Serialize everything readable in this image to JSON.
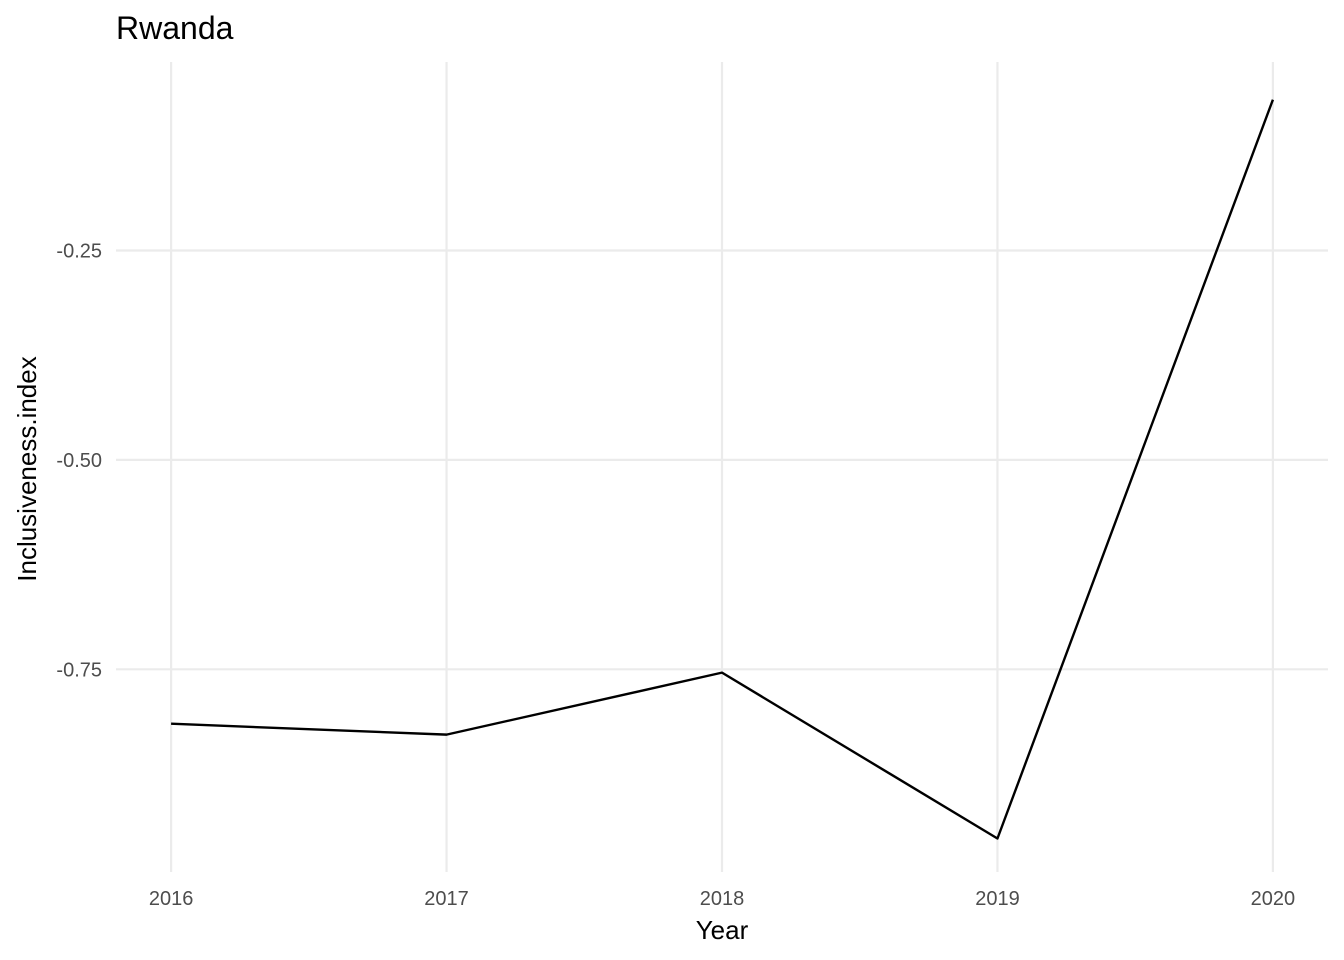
{
  "chart_data": {
    "type": "line",
    "title": "Rwanda",
    "xlabel": "Year",
    "ylabel": "Inclusiveness.index",
    "x": [
      2016,
      2017,
      2018,
      2019,
      2020
    ],
    "series": [
      {
        "values": [
          -0.815,
          -0.828,
          -0.754,
          -0.952,
          -0.07
        ]
      }
    ],
    "xticks": [
      "2016",
      "2017",
      "2018",
      "2019",
      "2020"
    ],
    "yticks": [
      {
        "value": -0.25,
        "label": "-0.25"
      },
      {
        "value": -0.5,
        "label": "-0.50"
      },
      {
        "value": -0.75,
        "label": "-0.75"
      }
    ],
    "xlim": [
      2015.8,
      2020.2
    ],
    "ylim": [
      -0.992,
      -0.025
    ],
    "grid": true,
    "legend": "none",
    "colors": {
      "line": "#000000",
      "grid": "#ebebeb",
      "tick_text": "#4d4d4d",
      "background": "#ffffff"
    }
  }
}
